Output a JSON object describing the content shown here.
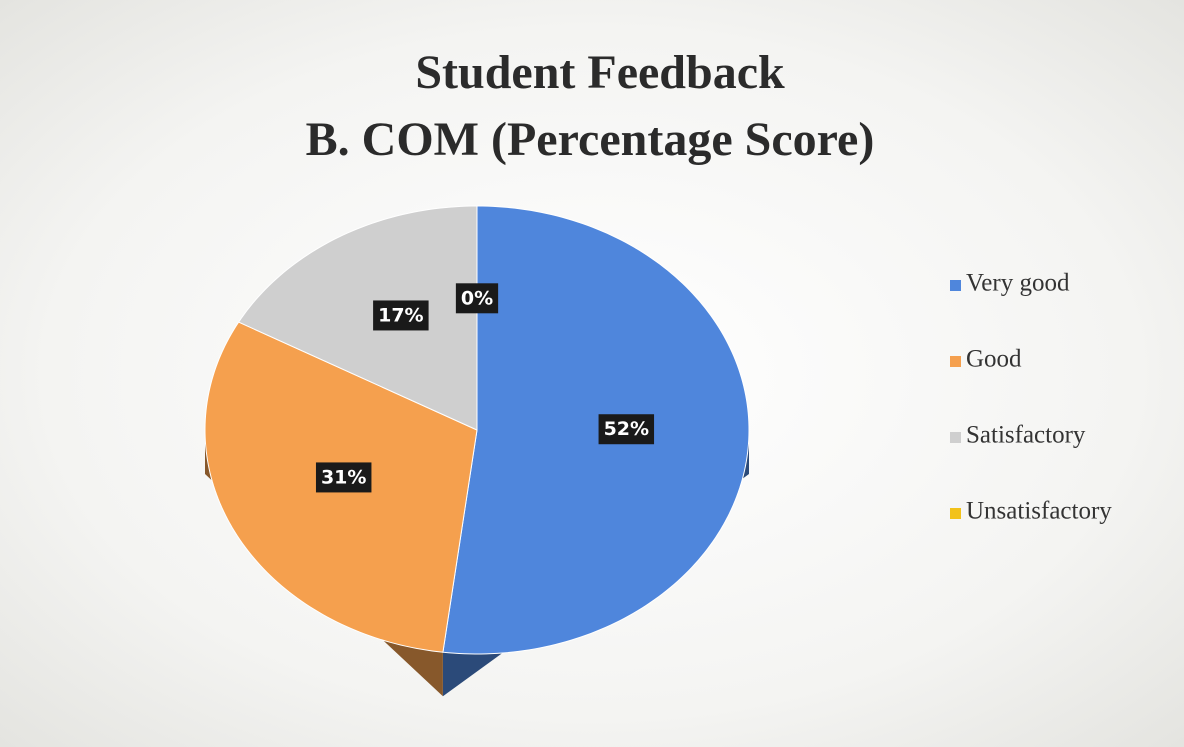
{
  "chart_data": {
    "type": "pie",
    "title": [
      "Student Feedback",
      "B. COM (Percentage Score)"
    ],
    "categories": [
      "Very good",
      "Good",
      "Satisfactory",
      "Unsatisfactory"
    ],
    "values": [
      52,
      31,
      17,
      0
    ],
    "value_labels": [
      "52%",
      "31%",
      "17%",
      "0%"
    ],
    "colors": [
      "#4f86dc",
      "#f5a04e",
      "#cfcfcf",
      "#f2c21a"
    ],
    "legend": "right"
  }
}
